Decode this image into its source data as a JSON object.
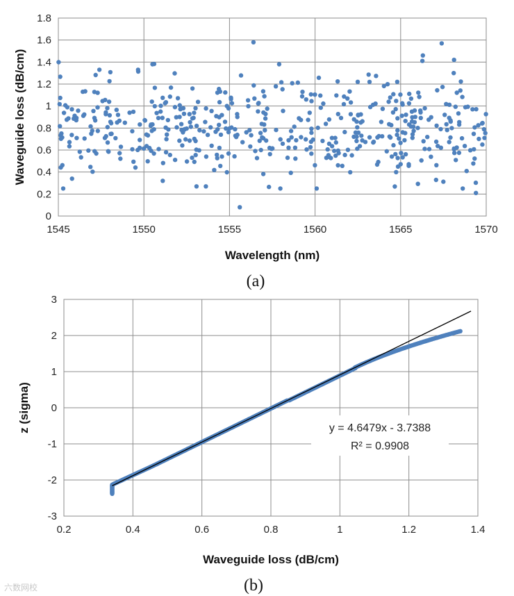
{
  "chart_data": [
    {
      "type": "scatter",
      "panel": "(a)",
      "xlabel": "Wavelength (nm)",
      "ylabel": "Waveguide loss (dB/cm)",
      "xlim": [
        1545,
        1570
      ],
      "ylim": [
        0,
        1.8
      ],
      "xticks": [
        1545,
        1550,
        1555,
        1560,
        1565,
        1570
      ],
      "yticks": [
        0,
        0.2,
        0.4,
        0.6,
        0.8,
        1,
        1.2,
        1.4,
        1.6,
        1.8
      ],
      "grid": true,
      "marker_color": "#4f81bd",
      "n_points": 500,
      "value_range": [
        0.08,
        1.58
      ],
      "mean_value": 0.8,
      "notable_points": [
        {
          "x": 1555.6,
          "y": 0.08
        },
        {
          "x": 1556.4,
          "y": 1.58
        },
        {
          "x": 1567.4,
          "y": 1.57
        },
        {
          "x": 1566.3,
          "y": 1.46
        },
        {
          "x": 1557.9,
          "y": 1.38
        },
        {
          "x": 1550.5,
          "y": 1.38
        },
        {
          "x": 1547.4,
          "y": 1.33
        },
        {
          "x": 1569.4,
          "y": 0.21
        },
        {
          "x": 1551.1,
          "y": 0.32
        },
        {
          "x": 1545.8,
          "y": 0.34
        },
        {
          "x": 1564.8,
          "y": 1.22
        },
        {
          "x": 1568.1,
          "y": 1.3
        }
      ]
    },
    {
      "type": "scatter",
      "panel": "(b)",
      "xlabel": "Waveguide loss (dB/cm)",
      "ylabel": "z (sigma)",
      "xlim": [
        0.2,
        1.4
      ],
      "ylim": [
        -3,
        3
      ],
      "xticks": [
        0.2,
        0.4,
        0.6,
        0.8,
        1,
        1.2,
        1.4
      ],
      "yticks": [
        -3,
        -2,
        -1,
        0,
        1,
        2,
        3
      ],
      "grid": true,
      "marker_color": "#4f81bd",
      "trendline": {
        "slope": 4.6479,
        "intercept": -3.7388,
        "x_start": 0.34,
        "x_end": 1.38,
        "color": "#000000"
      },
      "equation_text": "y = 4.6479x - 3.7388",
      "r2_text": "R² = 0.9908",
      "data_x_range": [
        0.34,
        1.38
      ],
      "data_z_range": [
        -2.38,
        2.12
      ]
    }
  ],
  "captions": [
    "(a)",
    "(b)"
  ],
  "watermark": "六数网校"
}
